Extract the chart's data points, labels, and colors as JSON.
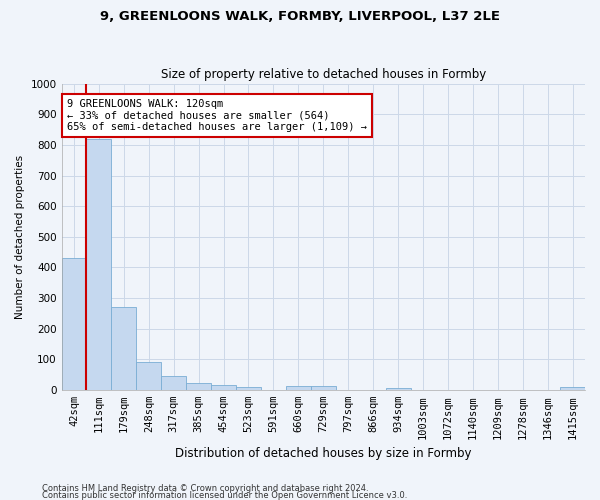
{
  "title1": "9, GREENLOONS WALK, FORMBY, LIVERPOOL, L37 2LE",
  "title2": "Size of property relative to detached houses in Formby",
  "xlabel": "Distribution of detached houses by size in Formby",
  "ylabel": "Number of detached properties",
  "bin_labels": [
    "42sqm",
    "111sqm",
    "179sqm",
    "248sqm",
    "317sqm",
    "385sqm",
    "454sqm",
    "523sqm",
    "591sqm",
    "660sqm",
    "729sqm",
    "797sqm",
    "866sqm",
    "934sqm",
    "1003sqm",
    "1072sqm",
    "1140sqm",
    "1209sqm",
    "1278sqm",
    "1346sqm",
    "1415sqm"
  ],
  "bar_heights": [
    430,
    820,
    270,
    92,
    45,
    22,
    18,
    10,
    0,
    12,
    12,
    0,
    0,
    8,
    0,
    0,
    0,
    0,
    0,
    0,
    10
  ],
  "bar_color": "#c5d8ef",
  "bar_edge_color": "#7aadd4",
  "grid_color": "#ccd8e8",
  "vline_x_index": 1,
  "vline_color": "#cc0000",
  "annotation_text": "9 GREENLOONS WALK: 120sqm\n← 33% of detached houses are smaller (564)\n65% of semi-detached houses are larger (1,109) →",
  "annotation_box_color": "#ffffff",
  "annotation_box_edge": "#cc0000",
  "ylim": [
    0,
    1000
  ],
  "yticks": [
    0,
    100,
    200,
    300,
    400,
    500,
    600,
    700,
    800,
    900,
    1000
  ],
  "footer1": "Contains HM Land Registry data © Crown copyright and database right 2024.",
  "footer2": "Contains public sector information licensed under the Open Government Licence v3.0.",
  "bg_color": "#f0f4fa",
  "title1_fontsize": 9.5,
  "title2_fontsize": 8.5,
  "xlabel_fontsize": 8.5,
  "ylabel_fontsize": 7.5,
  "tick_fontsize": 7.5,
  "annot_fontsize": 7.5,
  "footer_fontsize": 6.0
}
